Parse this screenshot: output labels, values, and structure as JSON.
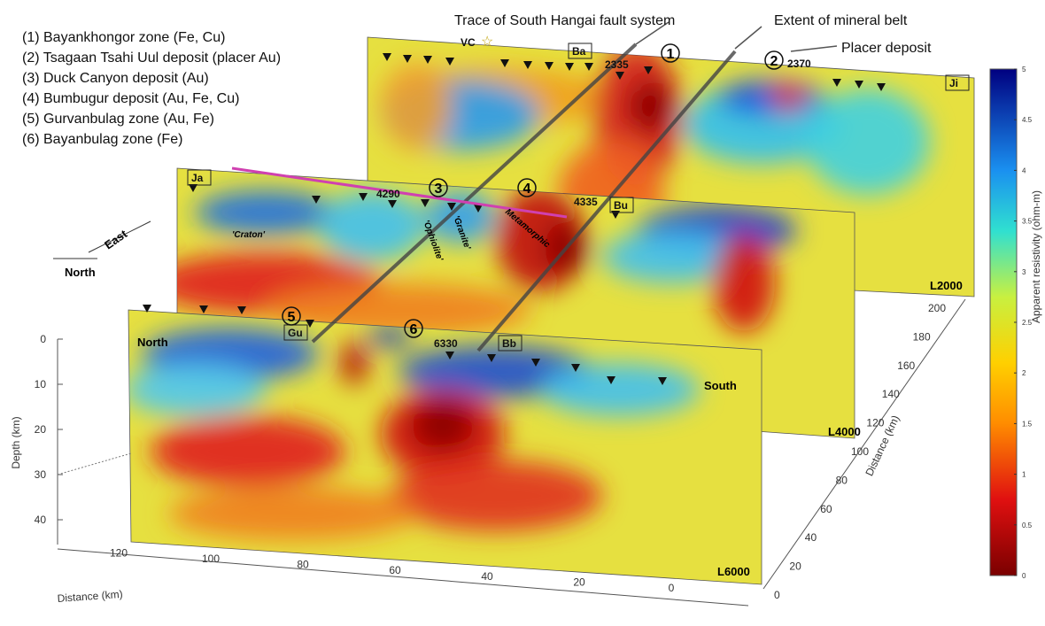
{
  "legend_items": [
    "(1) Bayankhongor zone (Fe, Cu)",
    "(2) Tsagaan Tsahi Uul deposit (placer Au)",
    "(3) Duck Canyon deposit (Au)",
    "(4) Bumbugur deposit (Au, Fe, Cu)",
    "(5) Gurvanbulag zone (Au, Fe)",
    "(6) Bayanbulag zone (Fe)"
  ],
  "annotations": {
    "fault": "Trace of South Hangai fault system",
    "belt": "Extent of mineral belt",
    "placer": "Placer deposit"
  },
  "section_labels": [
    "L2000",
    "L4000",
    "L6000"
  ],
  "site_labels": [
    "VC",
    "Ba",
    "Ji",
    "Ja",
    "Bu",
    "Gu",
    "Bb"
  ],
  "station_numbers": [
    "2335",
    "2370",
    "4290",
    "4335",
    "6330"
  ],
  "circle_numbers": [
    "1",
    "2",
    "3",
    "4",
    "5",
    "6"
  ],
  "geology": [
    "'Craton'",
    "'Ophiolite'",
    "'Granite'",
    "Metamorphic"
  ],
  "compass": {
    "east": "East",
    "north": "North"
  },
  "profile_ends": {
    "north": "North",
    "south": "South"
  },
  "depth_axis": {
    "label": "Depth (km)",
    "ticks": [
      0,
      10,
      20,
      30,
      40
    ]
  },
  "front_distance_axis": {
    "label": "Distance (km)",
    "ticks": [
      120,
      100,
      80,
      60,
      40,
      20,
      0
    ]
  },
  "side_distance_axis": {
    "label": "Distance (km)",
    "ticks": [
      0,
      20,
      40,
      60,
      80,
      100,
      120,
      140,
      160,
      180,
      200
    ]
  },
  "colorbar": {
    "label": "Apparent resistivity (ohm-m)",
    "ticks": [
      0,
      0.5,
      1,
      1.5,
      2,
      2.5,
      3,
      3.5,
      4,
      4.5,
      5
    ]
  }
}
